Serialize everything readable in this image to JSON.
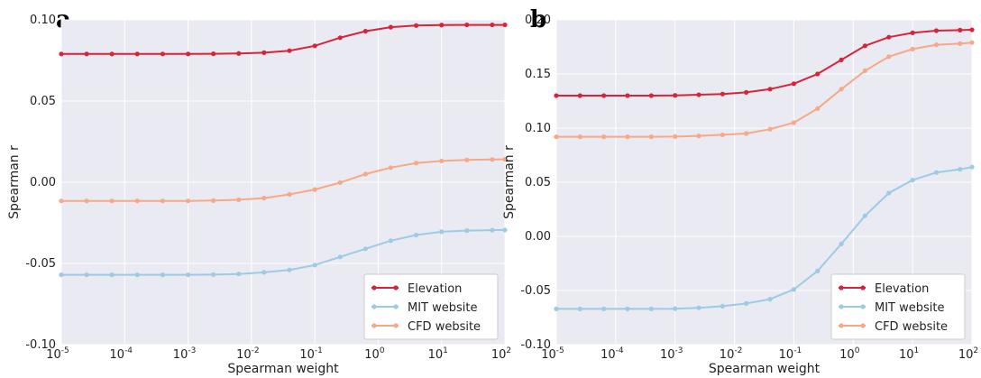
{
  "chart_data": [
    {
      "type": "line",
      "panel_label": "a",
      "title": "",
      "xlabel": "Spearman weight",
      "ylabel": "Spearman r",
      "x_scale": "log",
      "xlim": [
        1e-05,
        100
      ],
      "ylim": [
        -0.1,
        0.1
      ],
      "yticks": [
        "-0.10",
        "-0.05",
        "0.00",
        "0.05",
        "0.10"
      ],
      "xticks": [
        {
          "value": 1e-05,
          "base": "10",
          "exp": "-5"
        },
        {
          "value": 0.0001,
          "base": "10",
          "exp": "-4"
        },
        {
          "value": 0.001,
          "base": "10",
          "exp": "-3"
        },
        {
          "value": 0.01,
          "base": "10",
          "exp": "-2"
        },
        {
          "value": 0.1,
          "base": "10",
          "exp": "-1"
        },
        {
          "value": 1,
          "base": "10",
          "exp": "0"
        },
        {
          "value": 10,
          "base": "10",
          "exp": "1"
        },
        {
          "value": 100,
          "base": "10",
          "exp": "2"
        }
      ],
      "grid": true,
      "legend_position": "bottom-right",
      "x": [
        1e-05,
        2.51e-05,
        6.3e-05,
        0.000158,
        0.000398,
        0.001,
        0.00251,
        0.0063,
        0.0158,
        0.0398,
        0.1,
        0.251,
        0.63,
        1.58,
        3.98,
        10,
        25.1,
        63,
        100
      ],
      "series": [
        {
          "name": "Elevation",
          "color": "#d6243b",
          "values": [
            0.079,
            0.079,
            0.079,
            0.079,
            0.079,
            0.079,
            0.0791,
            0.0793,
            0.0798,
            0.081,
            0.084,
            0.089,
            0.093,
            0.0955,
            0.0965,
            0.0968,
            0.0969,
            0.0969,
            0.0969
          ]
        },
        {
          "name": "MIT website",
          "color": "#9ccbe3",
          "values": [
            -0.057,
            -0.057,
            -0.057,
            -0.057,
            -0.057,
            -0.057,
            -0.0569,
            -0.0565,
            -0.0555,
            -0.054,
            -0.051,
            -0.046,
            -0.041,
            -0.036,
            -0.0325,
            -0.0305,
            -0.0298,
            -0.0295,
            -0.0294
          ]
        },
        {
          "name": "CFD website",
          "color": "#f5a988",
          "values": [
            -0.0115,
            -0.0115,
            -0.0115,
            -0.0115,
            -0.0115,
            -0.0115,
            -0.0113,
            -0.0108,
            -0.0098,
            -0.0075,
            -0.0045,
            -0.0002,
            0.005,
            0.009,
            0.0118,
            0.0131,
            0.0137,
            0.014,
            0.0141
          ]
        }
      ]
    },
    {
      "type": "line",
      "panel_label": "b",
      "title": "",
      "xlabel": "Spearman weight",
      "ylabel": "Spearman r",
      "x_scale": "log",
      "xlim": [
        1e-05,
        100
      ],
      "ylim": [
        -0.1,
        0.2
      ],
      "yticks": [
        "-0.10",
        "-0.05",
        "0.00",
        "0.05",
        "0.10",
        "0.15",
        "0.20"
      ],
      "xticks": [
        {
          "value": 1e-05,
          "base": "10",
          "exp": "-5"
        },
        {
          "value": 0.0001,
          "base": "10",
          "exp": "-4"
        },
        {
          "value": 0.001,
          "base": "10",
          "exp": "-3"
        },
        {
          "value": 0.01,
          "base": "10",
          "exp": "-2"
        },
        {
          "value": 0.1,
          "base": "10",
          "exp": "-1"
        },
        {
          "value": 1,
          "base": "10",
          "exp": "0"
        },
        {
          "value": 10,
          "base": "10",
          "exp": "1"
        },
        {
          "value": 100,
          "base": "10",
          "exp": "2"
        }
      ],
      "grid": true,
      "legend_position": "bottom-right",
      "x": [
        1e-05,
        2.51e-05,
        6.3e-05,
        0.000158,
        0.000398,
        0.001,
        0.00251,
        0.0063,
        0.0158,
        0.0398,
        0.1,
        0.251,
        0.63,
        1.58,
        3.98,
        10,
        25.1,
        63,
        100
      ],
      "series": [
        {
          "name": "Elevation",
          "color": "#d6243b",
          "values": [
            0.13,
            0.13,
            0.13,
            0.13,
            0.13,
            0.1302,
            0.1308,
            0.1315,
            0.133,
            0.136,
            0.141,
            0.15,
            0.163,
            0.176,
            0.184,
            0.188,
            0.19,
            0.1905,
            0.1908
          ]
        },
        {
          "name": "MIT website",
          "color": "#9ccbe3",
          "values": [
            -0.067,
            -0.067,
            -0.067,
            -0.067,
            -0.067,
            -0.0668,
            -0.066,
            -0.0645,
            -0.062,
            -0.058,
            -0.049,
            -0.032,
            -0.007,
            0.019,
            0.04,
            0.052,
            0.059,
            0.062,
            0.064
          ]
        },
        {
          "name": "CFD website",
          "color": "#f5a988",
          "values": [
            0.092,
            0.092,
            0.092,
            0.092,
            0.092,
            0.0922,
            0.0928,
            0.0938,
            0.095,
            0.099,
            0.105,
            0.118,
            0.136,
            0.153,
            0.166,
            0.173,
            0.177,
            0.178,
            0.179
          ]
        }
      ]
    }
  ]
}
